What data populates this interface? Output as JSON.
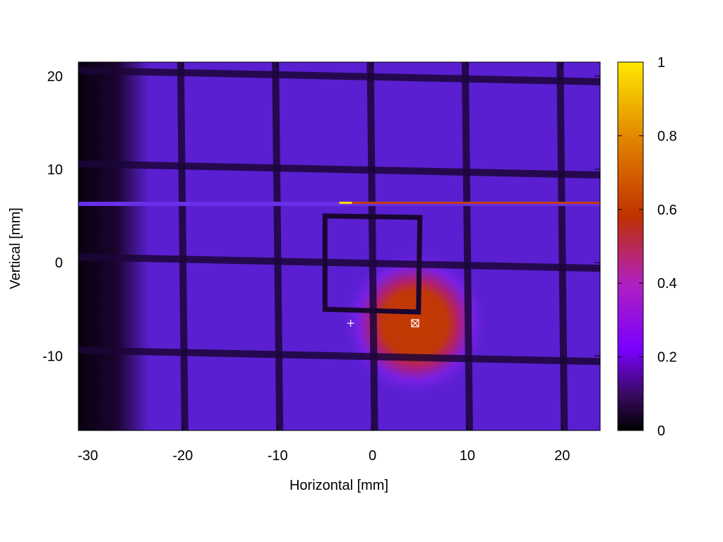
{
  "chart_data": {
    "type": "heatmap",
    "title": "",
    "xlabel": "Horizontal [mm]",
    "ylabel": "Vertical [mm]",
    "xlim": [
      -31,
      24
    ],
    "ylim": [
      -18,
      21.5
    ],
    "x_ticks": [
      -30,
      -20,
      -10,
      0,
      10,
      20
    ],
    "y_ticks": [
      20,
      10,
      0,
      -10
    ],
    "x_tick_labels": [
      "-30",
      "-20",
      "-10",
      "0",
      "10",
      "20"
    ],
    "y_tick_labels": [
      "20",
      "10",
      "0",
      "-10"
    ],
    "colorbar": {
      "range": [
        0,
        1
      ],
      "ticks": [
        1,
        0.8,
        0.6,
        0.4,
        0.2,
        0
      ],
      "tick_labels": [
        "1",
        "0.8",
        "0.6",
        "0.4",
        "0.2",
        "0"
      ],
      "stops": [
        "#000000",
        "#3a0a64",
        "#7a00ff",
        "#8c10e0",
        "#c03000",
        "#e07000",
        "#ffe800"
      ]
    },
    "background_color": "#5a1fd0",
    "grid_lines_vertical_x": [
      -20,
      -10,
      0,
      10,
      20
    ],
    "grid_lines_horizontal_y": [
      20,
      10,
      0,
      -10
    ],
    "hot_spot": {
      "center": [
        4.5,
        -6.5
      ],
      "radius": 4,
      "peak": 0.5
    },
    "beam_line_y": 6.3,
    "square": {
      "x": [
        -5,
        5
      ],
      "y": [
        -5.3,
        5
      ]
    },
    "markers": [
      {
        "symbol": "plus",
        "x": -2.3,
        "y": -6.5
      },
      {
        "symbol": "boxed-x",
        "x": 4.5,
        "y": -6.5
      }
    ]
  }
}
